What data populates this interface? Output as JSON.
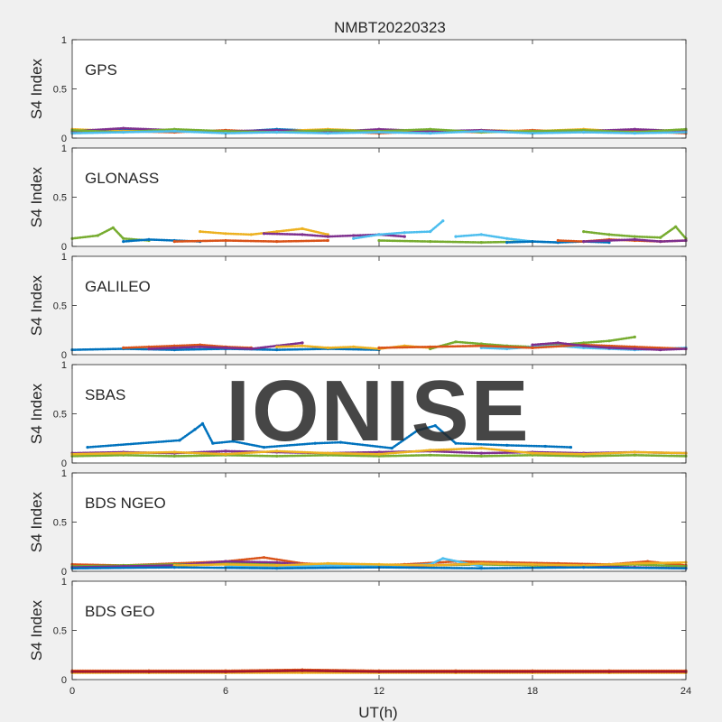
{
  "chart_data": {
    "type": "scatter",
    "title": "NMBT20220323",
    "xlabel": "UT(h)",
    "xlim": [
      0,
      24
    ],
    "xticks": [
      0,
      6,
      12,
      18,
      24
    ],
    "watermark": "IONISE",
    "colors": [
      "#0072BD",
      "#D95319",
      "#EDB120",
      "#7E2F8E",
      "#77AC30",
      "#4DBEEE",
      "#A2142F"
    ],
    "panels": [
      {
        "system": "GPS",
        "ylabel": "S4 Index",
        "ylim": [
          0,
          1
        ],
        "yticks": [
          0,
          0.5,
          1
        ],
        "series": [
          {
            "color_index": 0,
            "x": [
              0,
              2,
              4,
              6,
              8,
              10,
              12,
              14,
              16,
              18,
              20,
              22,
              24
            ],
            "y": [
              0.06,
              0.08,
              0.07,
              0.06,
              0.09,
              0.07,
              0.06,
              0.08,
              0.07,
              0.06,
              0.08,
              0.07,
              0.06
            ]
          },
          {
            "color_index": 1,
            "x": [
              0,
              2,
              4,
              6,
              8,
              10,
              12,
              14,
              16,
              18,
              20,
              22,
              24
            ],
            "y": [
              0.05,
              0.07,
              0.06,
              0.08,
              0.06,
              0.07,
              0.05,
              0.07,
              0.06,
              0.08,
              0.06,
              0.07,
              0.05
            ]
          },
          {
            "color_index": 2,
            "x": [
              0,
              2,
              4,
              6,
              8,
              10,
              12,
              14,
              16,
              18,
              20,
              22,
              24
            ],
            "y": [
              0.09,
              0.07,
              0.08,
              0.06,
              0.07,
              0.09,
              0.07,
              0.06,
              0.08,
              0.07,
              0.09,
              0.06,
              0.08
            ]
          },
          {
            "color_index": 3,
            "x": [
              0,
              2,
              4,
              6,
              8,
              10,
              12,
              14,
              16,
              18,
              20,
              22,
              24
            ],
            "y": [
              0.07,
              0.1,
              0.08,
              0.07,
              0.08,
              0.06,
              0.09,
              0.07,
              0.08,
              0.06,
              0.07,
              0.09,
              0.07
            ]
          },
          {
            "color_index": 4,
            "x": [
              0,
              2,
              4,
              6,
              8,
              10,
              12,
              14,
              16,
              18,
              20,
              22,
              24
            ],
            "y": [
              0.08,
              0.06,
              0.09,
              0.07,
              0.06,
              0.08,
              0.07,
              0.09,
              0.06,
              0.07,
              0.08,
              0.06,
              0.09
            ]
          },
          {
            "color_index": 5,
            "x": [
              0,
              2,
              4,
              6,
              8,
              10,
              12,
              14,
              16,
              18,
              20,
              22,
              24
            ],
            "y": [
              0.05,
              0.06,
              0.07,
              0.05,
              0.06,
              0.05,
              0.06,
              0.05,
              0.07,
              0.05,
              0.06,
              0.05,
              0.06
            ]
          }
        ]
      },
      {
        "system": "GLONASS",
        "ylabel": "S4 Index",
        "ylim": [
          0,
          1
        ],
        "yticks": [
          0,
          0.5,
          1
        ],
        "series": [
          {
            "color_index": 4,
            "x": [
              0,
              1,
              1.6,
              2,
              3
            ],
            "y": [
              0.08,
              0.11,
              0.19,
              0.08,
              0.06
            ]
          },
          {
            "color_index": 0,
            "x": [
              2,
              3,
              4,
              5
            ],
            "y": [
              0.05,
              0.07,
              0.06,
              0.05
            ]
          },
          {
            "color_index": 2,
            "x": [
              5,
              6,
              7,
              8,
              9,
              10
            ],
            "y": [
              0.15,
              0.13,
              0.12,
              0.15,
              0.18,
              0.12
            ]
          },
          {
            "color_index": 3,
            "x": [
              7.5,
              9,
              10,
              11,
              12,
              13
            ],
            "y": [
              0.13,
              0.12,
              0.1,
              0.11,
              0.12,
              0.1
            ]
          },
          {
            "color_index": 5,
            "x": [
              11,
              12,
              13,
              14,
              14.5
            ],
            "y": [
              0.08,
              0.12,
              0.14,
              0.15,
              0.26
            ]
          },
          {
            "color_index": 1,
            "x": [
              4,
              6,
              8,
              10
            ],
            "y": [
              0.05,
              0.06,
              0.05,
              0.06
            ]
          },
          {
            "color_index": 4,
            "x": [
              12,
              14,
              16,
              18
            ],
            "y": [
              0.06,
              0.05,
              0.04,
              0.05
            ]
          },
          {
            "color_index": 5,
            "x": [
              15,
              16,
              17,
              18,
              19
            ],
            "y": [
              0.1,
              0.12,
              0.08,
              0.05,
              0.04
            ]
          },
          {
            "color_index": 0,
            "x": [
              17,
              18,
              19,
              20,
              21
            ],
            "y": [
              0.04,
              0.05,
              0.04,
              0.05,
              0.04
            ]
          },
          {
            "color_index": 4,
            "x": [
              20,
              21,
              22,
              23,
              23.6,
              24
            ],
            "y": [
              0.15,
              0.12,
              0.1,
              0.09,
              0.2,
              0.08
            ]
          },
          {
            "color_index": 1,
            "x": [
              19,
              20,
              21,
              22,
              23,
              24
            ],
            "y": [
              0.06,
              0.05,
              0.07,
              0.06,
              0.05,
              0.06
            ]
          },
          {
            "color_index": 3,
            "x": [
              20,
              21,
              22,
              23,
              24
            ],
            "y": [
              0.05,
              0.06,
              0.07,
              0.05,
              0.06
            ]
          }
        ]
      },
      {
        "system": "GALILEO",
        "ylabel": "S4 Index",
        "ylim": [
          0,
          1
        ],
        "yticks": [
          0,
          0.5,
          1
        ],
        "series": [
          {
            "color_index": 0,
            "x": [
              0,
              2,
              4,
              6,
              8,
              10,
              12
            ],
            "y": [
              0.05,
              0.06,
              0.05,
              0.06,
              0.05,
              0.06,
              0.05
            ]
          },
          {
            "color_index": 1,
            "x": [
              2,
              3,
              4,
              5,
              6,
              7
            ],
            "y": [
              0.07,
              0.08,
              0.09,
              0.1,
              0.08,
              0.07
            ]
          },
          {
            "color_index": 3,
            "x": [
              3,
              4,
              5,
              6,
              7,
              8,
              9
            ],
            "y": [
              0.06,
              0.07,
              0.08,
              0.07,
              0.06,
              0.09,
              0.12
            ]
          },
          {
            "color_index": 2,
            "x": [
              8,
              9,
              10,
              11,
              12,
              13,
              14
            ],
            "y": [
              0.08,
              0.09,
              0.07,
              0.08,
              0.06,
              0.09,
              0.07
            ]
          },
          {
            "color_index": 4,
            "x": [
              14,
              15,
              16,
              17,
              18,
              19,
              20,
              21,
              22
            ],
            "y": [
              0.06,
              0.13,
              0.11,
              0.09,
              0.08,
              0.1,
              0.12,
              0.14,
              0.18
            ]
          },
          {
            "color_index": 5,
            "x": [
              16,
              17,
              18,
              19,
              20,
              21,
              22,
              23,
              24
            ],
            "y": [
              0.07,
              0.06,
              0.08,
              0.09,
              0.07,
              0.06,
              0.05,
              0.06,
              0.07
            ]
          },
          {
            "color_index": 1,
            "x": [
              12,
              14,
              16,
              18,
              20,
              22,
              24
            ],
            "y": [
              0.07,
              0.08,
              0.09,
              0.07,
              0.1,
              0.08,
              0.06
            ]
          },
          {
            "color_index": 3,
            "x": [
              18,
              19,
              20,
              21,
              22,
              23,
              24
            ],
            "y": [
              0.1,
              0.12,
              0.09,
              0.07,
              0.06,
              0.05,
              0.06
            ]
          }
        ]
      },
      {
        "system": "SBAS",
        "ylabel": "S4 Index",
        "ylim": [
          0,
          1
        ],
        "yticks": [
          0,
          0.5,
          1
        ],
        "series": [
          {
            "color_index": 3,
            "x": [
              0,
              2,
              4,
              6,
              8,
              10,
              12,
              14,
              16,
              18,
              20,
              22,
              24
            ],
            "y": [
              0.1,
              0.11,
              0.1,
              0.12,
              0.11,
              0.1,
              0.11,
              0.12,
              0.1,
              0.11,
              0.1,
              0.11,
              0.1
            ]
          },
          {
            "color_index": 4,
            "x": [
              0,
              2,
              4,
              6,
              8,
              10,
              12,
              14,
              16,
              18,
              20,
              22,
              24
            ],
            "y": [
              0.07,
              0.08,
              0.07,
              0.08,
              0.07,
              0.08,
              0.07,
              0.08,
              0.07,
              0.08,
              0.07,
              0.08,
              0.07
            ]
          },
          {
            "color_index": 2,
            "x": [
              0,
              2,
              4,
              6,
              8,
              10,
              12,
              14,
              16,
              18,
              20,
              22,
              24
            ],
            "y": [
              0.09,
              0.1,
              0.11,
              0.09,
              0.12,
              0.1,
              0.09,
              0.13,
              0.15,
              0.1,
              0.09,
              0.11,
              0.1
            ]
          },
          {
            "color_index": 0,
            "x": [
              0.6,
              4.2,
              4.8,
              5.1,
              5.5,
              6.3,
              7.5,
              9.5,
              10.5,
              12.5,
              13.5,
              14.2,
              15,
              17,
              18.5,
              19.5
            ],
            "y": [
              0.16,
              0.23,
              0.34,
              0.4,
              0.2,
              0.22,
              0.16,
              0.2,
              0.21,
              0.15,
              0.33,
              0.38,
              0.2,
              0.18,
              0.17,
              0.16
            ]
          }
        ]
      },
      {
        "system": "BDS NGEO",
        "ylabel": "S4 Index",
        "ylim": [
          0,
          1
        ],
        "yticks": [
          0,
          0.5,
          1
        ],
        "series": [
          {
            "color_index": 1,
            "x": [
              0,
              2,
              4,
              6,
              7.5,
              9,
              11,
              13,
              15,
              17,
              19,
              21,
              22.5,
              24
            ],
            "y": [
              0.07,
              0.06,
              0.08,
              0.1,
              0.14,
              0.08,
              0.06,
              0.07,
              0.1,
              0.09,
              0.08,
              0.07,
              0.1,
              0.06
            ]
          },
          {
            "color_index": 4,
            "x": [
              0,
              2,
              4,
              6,
              8,
              10,
              12,
              14,
              16,
              18,
              20,
              22,
              24
            ],
            "y": [
              0.05,
              0.06,
              0.07,
              0.08,
              0.07,
              0.06,
              0.05,
              0.06,
              0.07,
              0.06,
              0.05,
              0.07,
              0.05
            ]
          },
          {
            "color_index": 3,
            "x": [
              0,
              2,
              4,
              6,
              8,
              10,
              12,
              14,
              16,
              18,
              20,
              22,
              24
            ],
            "y": [
              0.04,
              0.05,
              0.06,
              0.1,
              0.09,
              0.05,
              0.04,
              0.06,
              0.08,
              0.07,
              0.05,
              0.04,
              0.03
            ]
          },
          {
            "color_index": 5,
            "x": [
              6,
              8,
              10,
              12,
              14,
              14.5,
              16
            ],
            "y": [
              0.05,
              0.04,
              0.06,
              0.05,
              0.07,
              0.13,
              0.05
            ]
          },
          {
            "color_index": 2,
            "x": [
              4,
              6,
              8,
              10,
              12,
              14,
              16,
              18,
              20,
              22,
              24
            ],
            "y": [
              0.06,
              0.07,
              0.06,
              0.08,
              0.07,
              0.06,
              0.08,
              0.07,
              0.06,
              0.08,
              0.09
            ]
          },
          {
            "color_index": 0,
            "x": [
              0,
              4,
              8,
              12,
              16,
              20,
              24
            ],
            "y": [
              0.03,
              0.04,
              0.03,
              0.04,
              0.03,
              0.04,
              0.03
            ]
          }
        ]
      },
      {
        "system": "BDS GEO",
        "ylabel": "S4 Index",
        "ylim": [
          0,
          1
        ],
        "yticks": [
          0,
          0.5,
          1
        ],
        "series": [
          {
            "color_index": 1,
            "x": [
              0,
              3,
              6,
              9,
              12,
              15,
              18,
              21,
              24
            ],
            "y": [
              0.09,
              0.09,
              0.09,
              0.1,
              0.09,
              0.09,
              0.09,
              0.09,
              0.09
            ]
          },
          {
            "color_index": 2,
            "x": [
              0,
              3,
              6,
              9,
              12,
              15,
              18,
              21,
              24
            ],
            "y": [
              0.07,
              0.07,
              0.07,
              0.07,
              0.07,
              0.07,
              0.07,
              0.07,
              0.07
            ]
          },
          {
            "color_index": 6,
            "x": [
              0,
              3,
              6,
              9,
              12,
              15,
              18,
              21,
              24
            ],
            "y": [
              0.08,
              0.08,
              0.08,
              0.09,
              0.08,
              0.08,
              0.08,
              0.08,
              0.08
            ]
          }
        ]
      }
    ]
  }
}
